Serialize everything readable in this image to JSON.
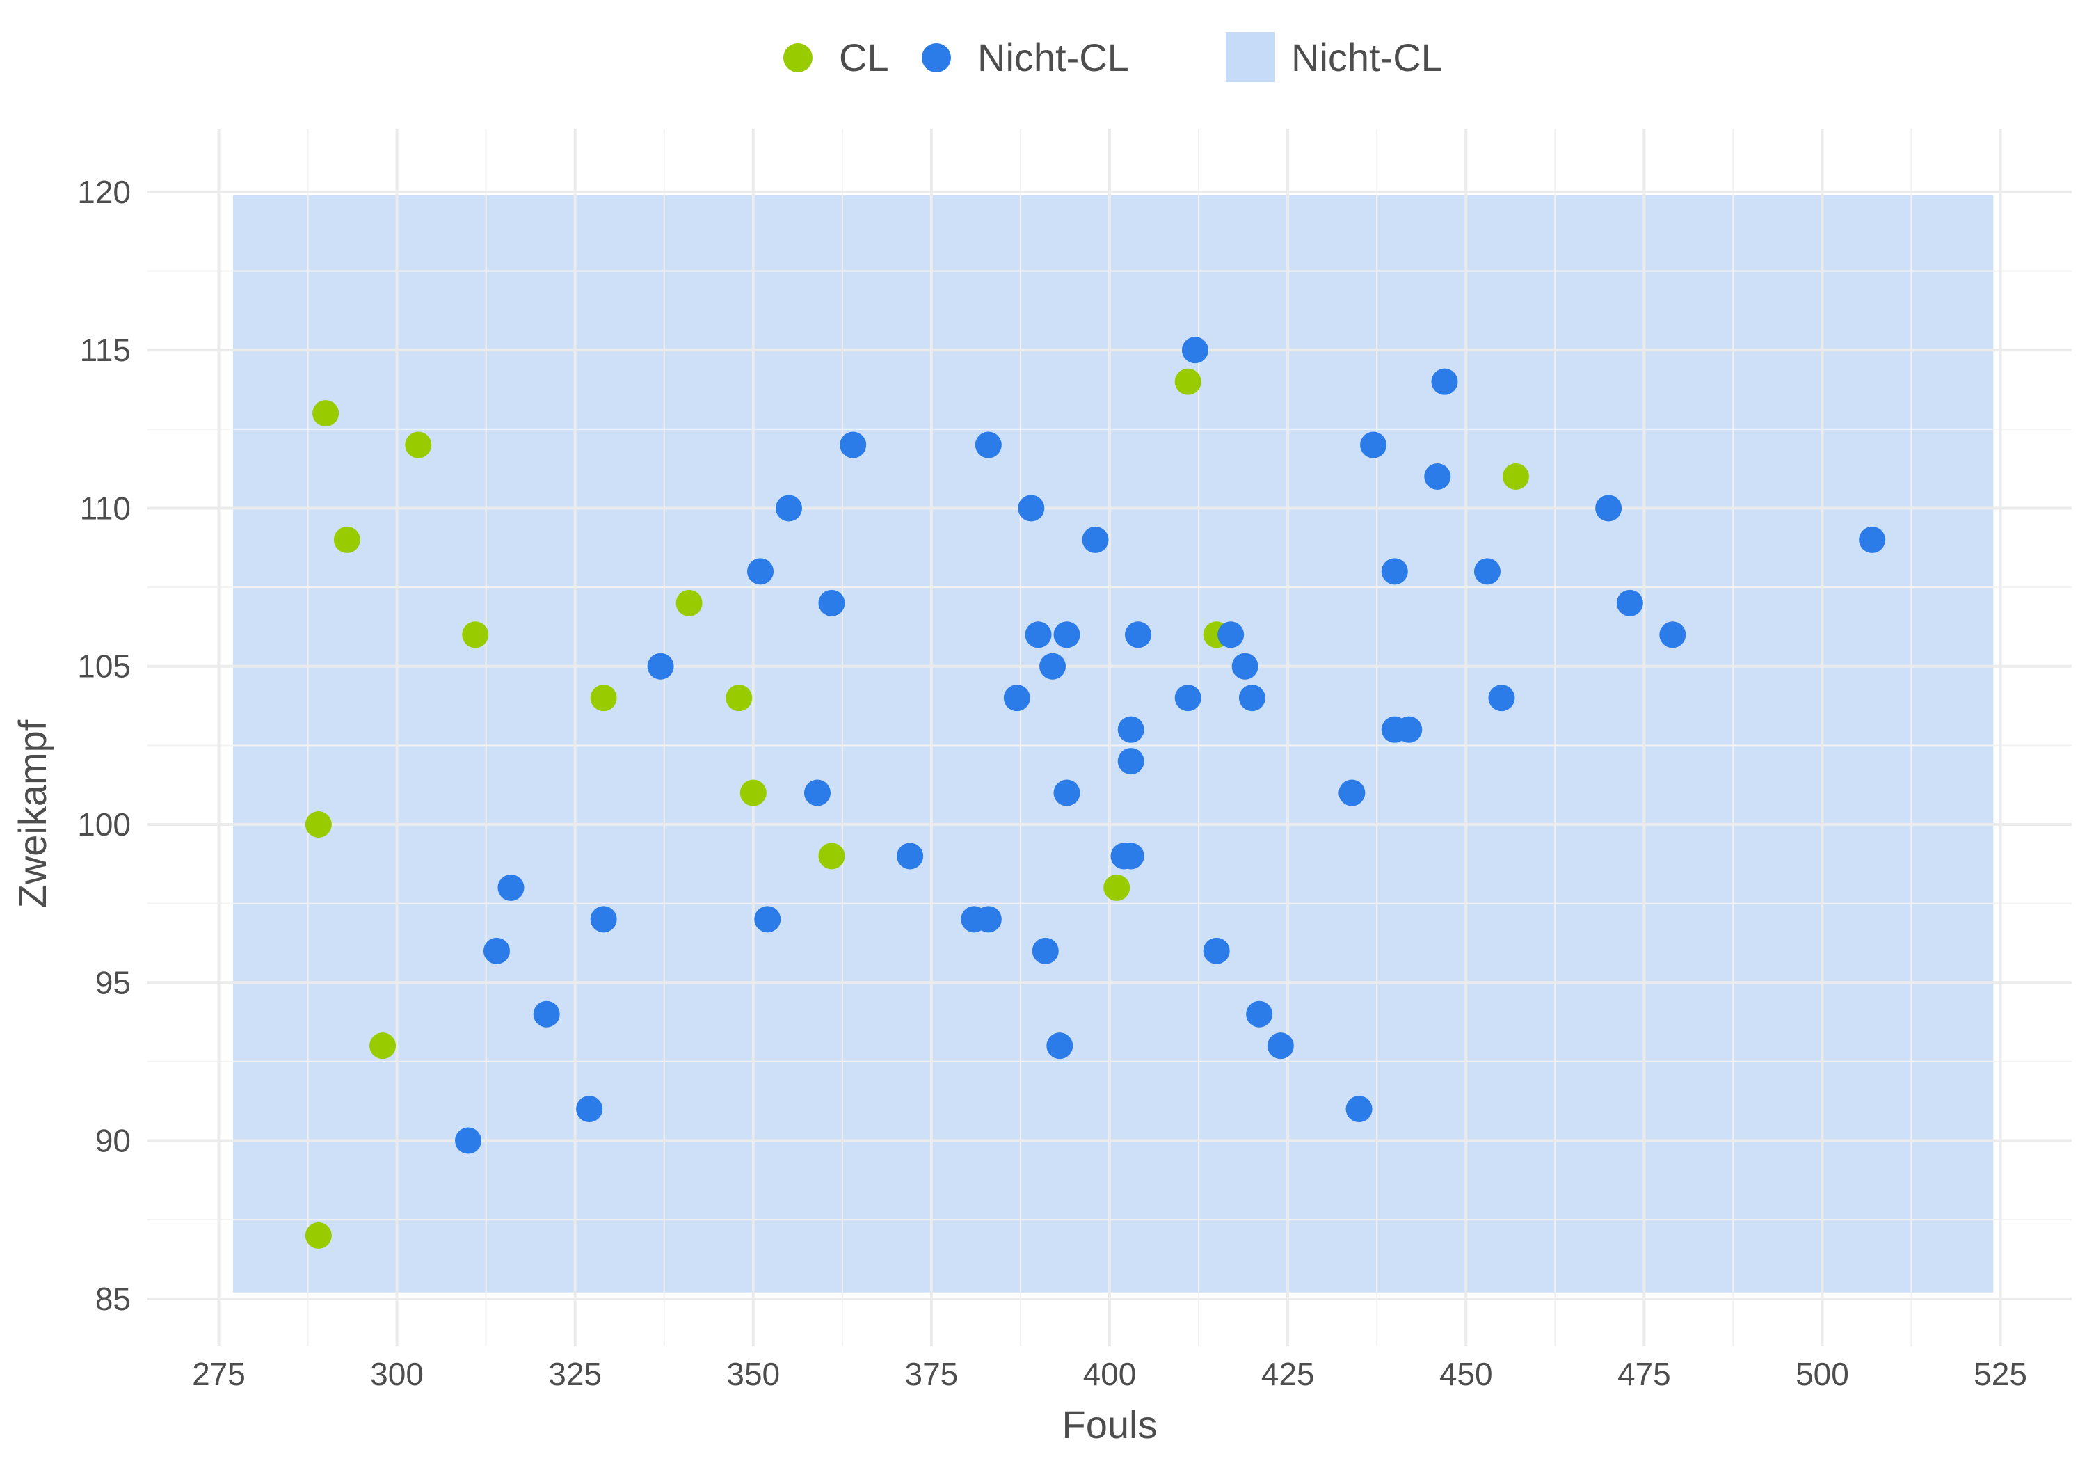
{
  "chart_data": {
    "type": "scatter",
    "xlabel": "Fouls",
    "ylabel": "Zweikampf",
    "xlim": [
      265,
      535
    ],
    "ylim": [
      83.5,
      122
    ],
    "xticks": [
      275,
      300,
      325,
      350,
      375,
      400,
      425,
      450,
      475,
      500,
      525
    ],
    "yticks": [
      85,
      90,
      95,
      100,
      105,
      110,
      115,
      120
    ],
    "grid": true,
    "legend_position": "top",
    "legend": {
      "points": [
        {
          "label": "CL",
          "color": "#99cc00"
        },
        {
          "label": "Nicht-CL",
          "color": "#2b7be8"
        }
      ],
      "area": {
        "label": "Nicht-CL",
        "color": "#c6dbf7"
      }
    },
    "region": {
      "name": "Nicht-CL",
      "color": "#c6dbf7",
      "x": [
        277,
        524
      ],
      "y": [
        85.2,
        119.9
      ]
    },
    "series": [
      {
        "name": "CL",
        "color": "#99cc00",
        "points": [
          [
            289,
            87
          ],
          [
            289,
            100
          ],
          [
            290,
            113
          ],
          [
            293,
            109
          ],
          [
            298,
            93
          ],
          [
            303,
            112
          ],
          [
            311,
            106
          ],
          [
            329,
            104
          ],
          [
            341,
            107
          ],
          [
            348,
            104
          ],
          [
            350,
            101
          ],
          [
            361,
            99
          ],
          [
            401,
            98
          ],
          [
            411,
            114
          ],
          [
            415,
            106
          ],
          [
            457,
            111
          ]
        ]
      },
      {
        "name": "Nicht-CL",
        "color": "#2b7be8",
        "points": [
          [
            310,
            90
          ],
          [
            314,
            96
          ],
          [
            316,
            98
          ],
          [
            321,
            94
          ],
          [
            327,
            91
          ],
          [
            329,
            97
          ],
          [
            337,
            105
          ],
          [
            351,
            108
          ],
          [
            352,
            97
          ],
          [
            355,
            110
          ],
          [
            359,
            101
          ],
          [
            361,
            107
          ],
          [
            364,
            112
          ],
          [
            372,
            99
          ],
          [
            381,
            97
          ],
          [
            383,
            97
          ],
          [
            383,
            112
          ],
          [
            387,
            104
          ],
          [
            389,
            110
          ],
          [
            390,
            106
          ],
          [
            391,
            96
          ],
          [
            392,
            105
          ],
          [
            393,
            93
          ],
          [
            394,
            101
          ],
          [
            394,
            106
          ],
          [
            398,
            109
          ],
          [
            402,
            99
          ],
          [
            403,
            99
          ],
          [
            403,
            102
          ],
          [
            403,
            103
          ],
          [
            404,
            106
          ],
          [
            411,
            104
          ],
          [
            412,
            115
          ],
          [
            415,
            96
          ],
          [
            417,
            106
          ],
          [
            419,
            105
          ],
          [
            420,
            104
          ],
          [
            421,
            94
          ],
          [
            424,
            93
          ],
          [
            434,
            101
          ],
          [
            435,
            91
          ],
          [
            437,
            112
          ],
          [
            440,
            103
          ],
          [
            440,
            108
          ],
          [
            442,
            103
          ],
          [
            446,
            111
          ],
          [
            447,
            114
          ],
          [
            453,
            108
          ],
          [
            455,
            104
          ],
          [
            470,
            110
          ],
          [
            473,
            107
          ],
          [
            479,
            106
          ],
          [
            507,
            109
          ]
        ]
      }
    ]
  }
}
